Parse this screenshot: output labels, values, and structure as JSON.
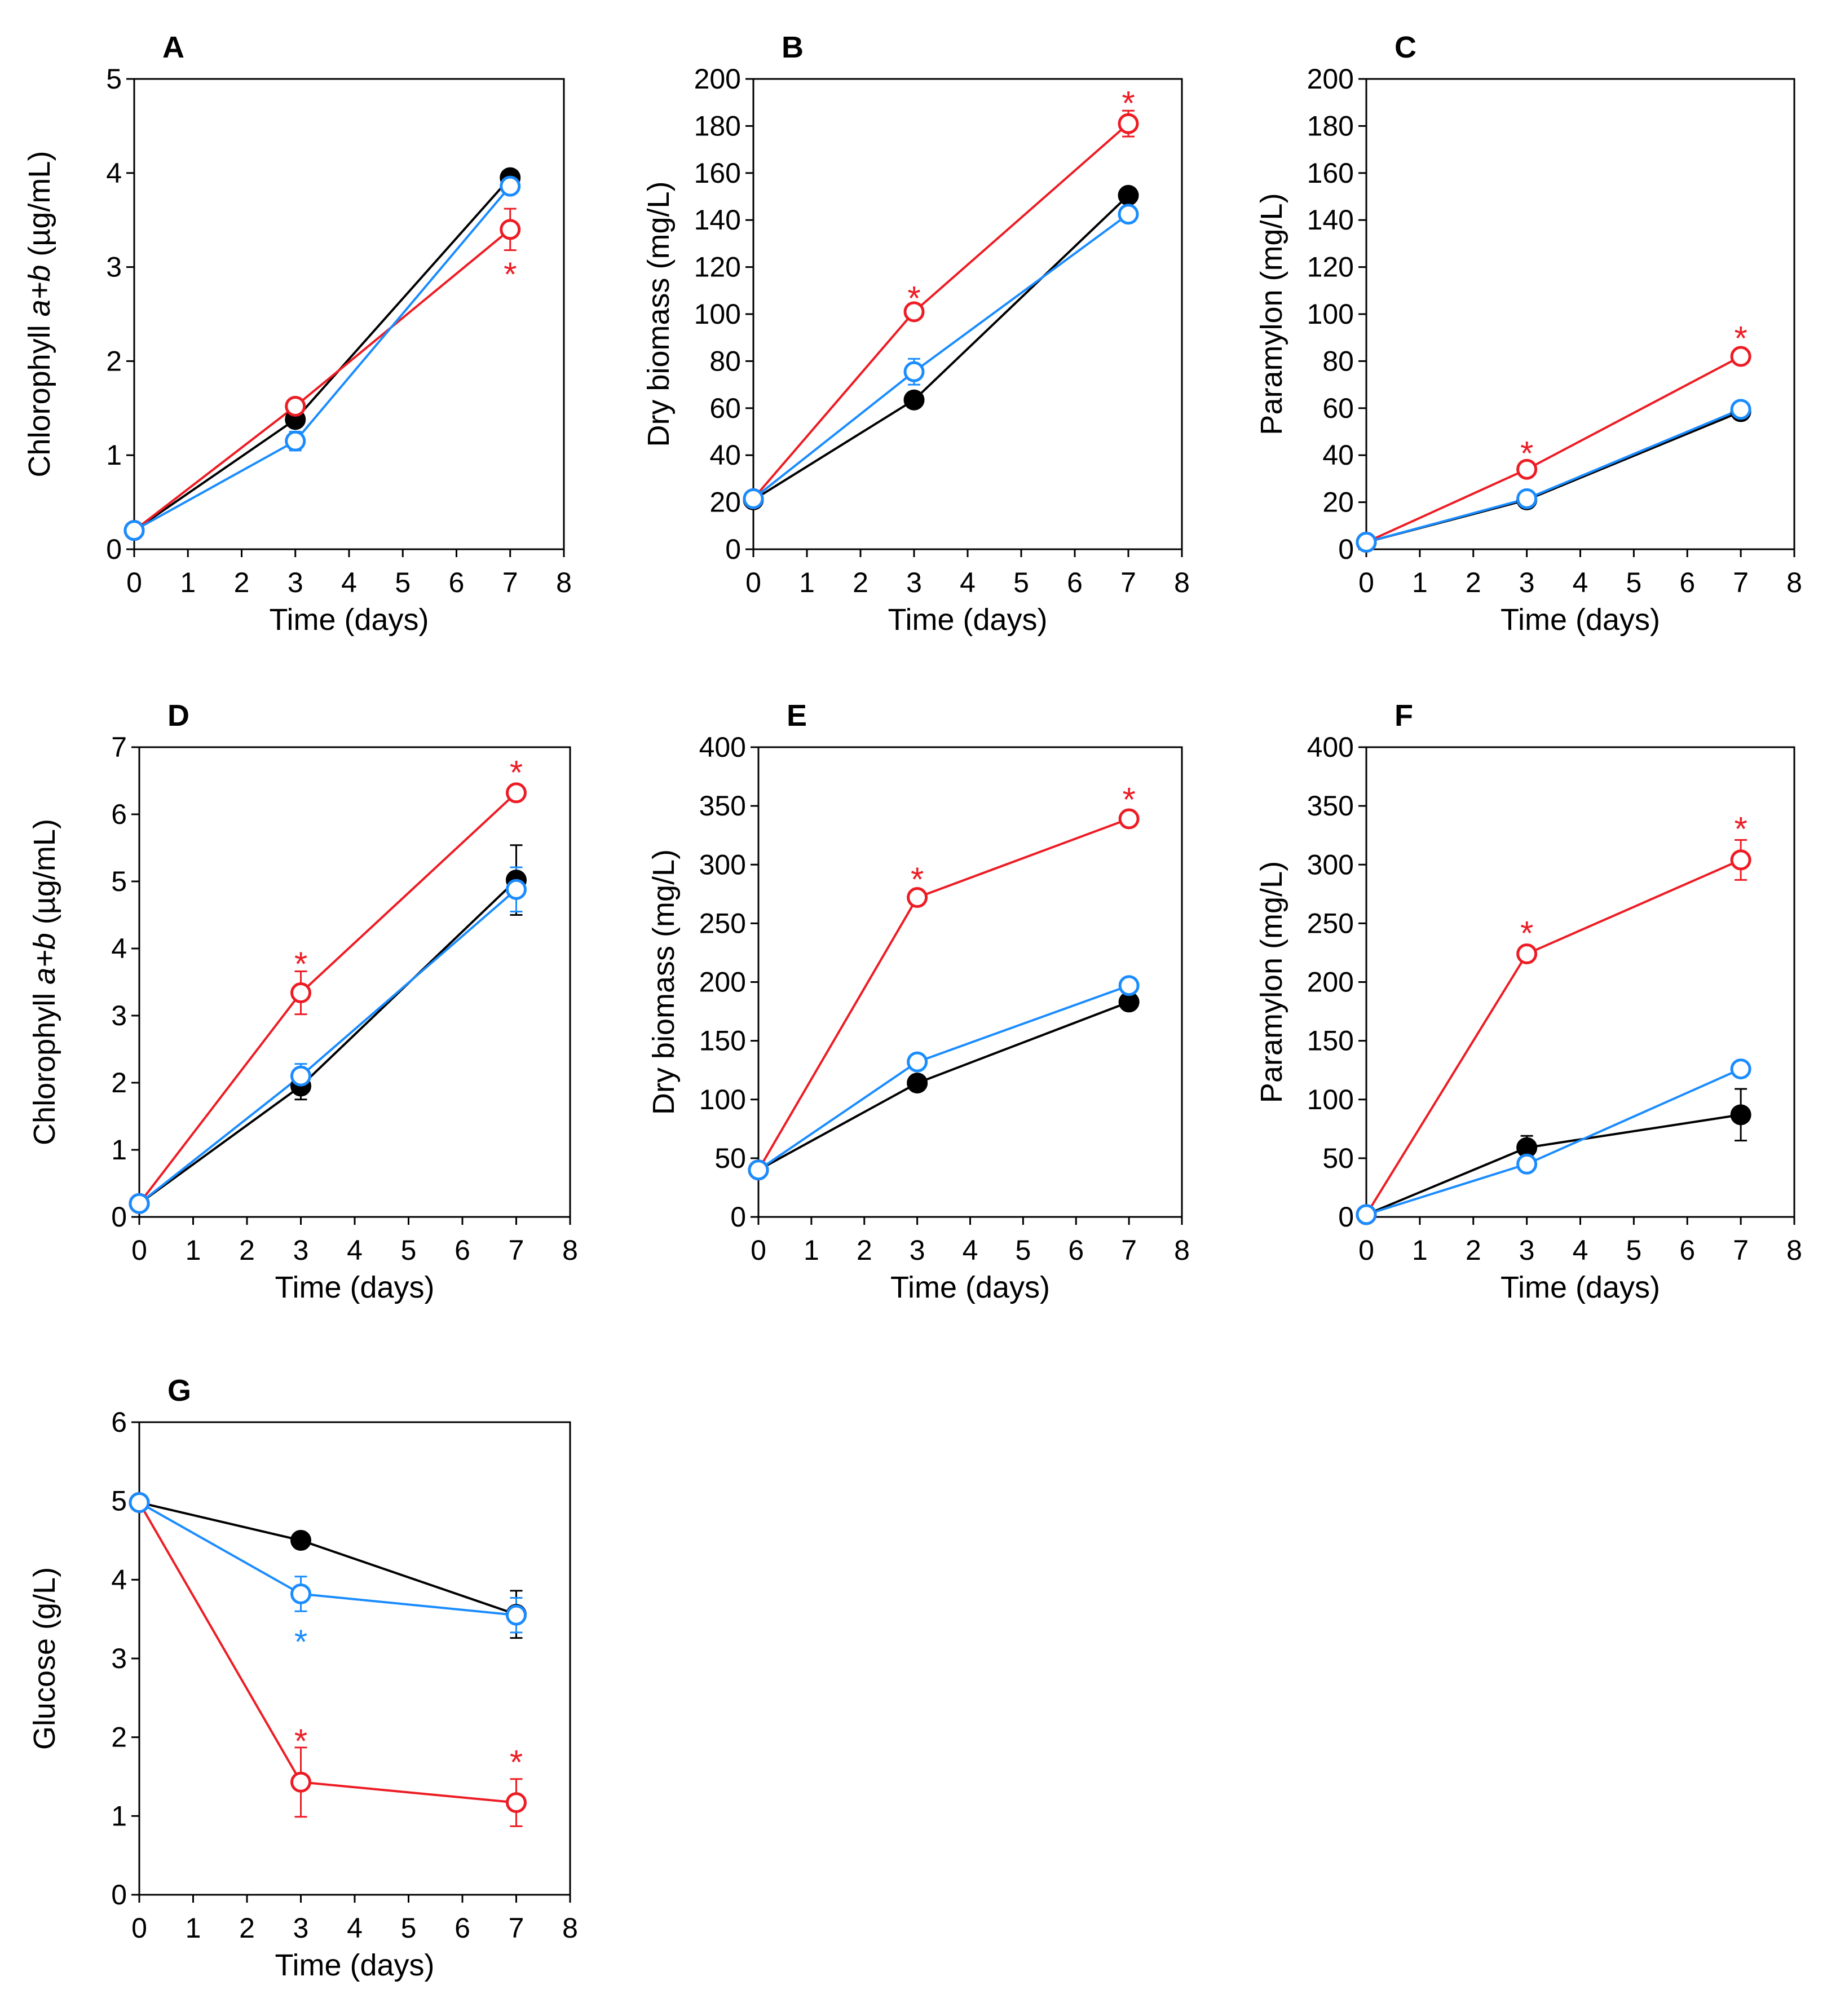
{
  "figure": {
    "series_styles": {
      "black": {
        "color": "#000000",
        "marker": "filled-circle"
      },
      "red": {
        "color": "#ed1c24",
        "marker": "open-circle"
      },
      "blue": {
        "color": "#1a8cff",
        "marker": "open-circle"
      }
    }
  },
  "chart_data": [
    {
      "panel": "A",
      "type": "line",
      "xlabel": "Time (days)",
      "ylabel_parts": [
        {
          "t": "Chlorophyll "
        },
        {
          "t": "a+b",
          "italic": true
        },
        {
          "t": " (µg/mL)"
        }
      ],
      "xlim": [
        0,
        8
      ],
      "xticks": [
        0,
        1,
        2,
        3,
        4,
        5,
        6,
        7,
        8
      ],
      "ylim": [
        0,
        5
      ],
      "yticks": [
        0,
        1,
        2,
        3,
        4,
        5
      ],
      "x": [
        0,
        3,
        7
      ],
      "series": [
        {
          "name": "black",
          "values": [
            0.2,
            1.38,
            3.95
          ],
          "errors": [
            0,
            0.05,
            0.05
          ]
        },
        {
          "name": "red",
          "values": [
            0.2,
            1.52,
            3.4
          ],
          "errors": [
            0,
            0.04,
            0.22
          ]
        },
        {
          "name": "blue",
          "values": [
            0.2,
            1.15,
            3.86
          ],
          "errors": [
            0,
            0.1,
            0.05
          ]
        }
      ],
      "annotations": [
        {
          "text": "*",
          "x": 7,
          "y": 2.98,
          "color": "red"
        }
      ]
    },
    {
      "panel": "B",
      "type": "line",
      "xlabel": "Time (days)",
      "ylabel_parts": [
        {
          "t": "Dry biomass (mg/L)"
        }
      ],
      "xlim": [
        0,
        8
      ],
      "xticks": [
        0,
        1,
        2,
        3,
        4,
        5,
        6,
        7,
        8
      ],
      "ylim": [
        0,
        200
      ],
      "yticks": [
        0,
        20,
        40,
        60,
        80,
        100,
        120,
        140,
        160,
        180,
        200
      ],
      "x": [
        0,
        3,
        7
      ],
      "series": [
        {
          "name": "black",
          "values": [
            21,
            63.5,
            150.5
          ],
          "errors": [
            0,
            2,
            2
          ]
        },
        {
          "name": "red",
          "values": [
            21.5,
            101,
            181
          ],
          "errors": [
            0,
            2,
            5.5
          ]
        },
        {
          "name": "blue",
          "values": [
            21.5,
            75.5,
            142.5
          ],
          "errors": [
            0,
            5.5,
            2.5
          ]
        }
      ],
      "annotations": [
        {
          "text": "*",
          "x": 3,
          "y": 109,
          "color": "red"
        },
        {
          "text": "*",
          "x": 7,
          "y": 192,
          "color": "red"
        }
      ]
    },
    {
      "panel": "C",
      "type": "line",
      "xlabel": "Time (days)",
      "ylabel_parts": [
        {
          "t": "Paramylon (mg/L)"
        }
      ],
      "xlim": [
        0,
        8
      ],
      "xticks": [
        0,
        1,
        2,
        3,
        4,
        5,
        6,
        7,
        8
      ],
      "ylim": [
        0,
        200
      ],
      "yticks": [
        0,
        20,
        40,
        60,
        80,
        100,
        120,
        140,
        160,
        180,
        200
      ],
      "x": [
        0,
        3,
        7
      ],
      "series": [
        {
          "name": "black",
          "values": [
            3,
            21,
            58.5
          ],
          "errors": [
            0,
            1,
            1.5
          ]
        },
        {
          "name": "red",
          "values": [
            3,
            34,
            82
          ],
          "errors": [
            0,
            1.5,
            2
          ]
        },
        {
          "name": "blue",
          "values": [
            3,
            21.5,
            59.5
          ],
          "errors": [
            0,
            1.5,
            2
          ]
        }
      ],
      "annotations": [
        {
          "text": "*",
          "x": 3,
          "y": 43,
          "color": "red"
        },
        {
          "text": "*",
          "x": 7,
          "y": 92,
          "color": "red"
        }
      ]
    },
    {
      "panel": "D",
      "type": "line",
      "xlabel": "Time (days)",
      "ylabel_parts": [
        {
          "t": "Chlorophyll "
        },
        {
          "t": "a+b",
          "italic": true
        },
        {
          "t": " (µg/mL)"
        }
      ],
      "xlim": [
        0,
        8
      ],
      "xticks": [
        0,
        1,
        2,
        3,
        4,
        5,
        6,
        7,
        8
      ],
      "ylim": [
        0,
        7
      ],
      "yticks": [
        0,
        1,
        2,
        3,
        4,
        5,
        6,
        7
      ],
      "x": [
        0,
        3,
        7
      ],
      "series": [
        {
          "name": "black",
          "values": [
            0.2,
            1.95,
            5.02
          ],
          "errors": [
            0,
            0.2,
            0.52
          ]
        },
        {
          "name": "red",
          "values": [
            0.2,
            3.34,
            6.32
          ],
          "errors": [
            0,
            0.32,
            0.05
          ]
        },
        {
          "name": "blue",
          "values": [
            0.2,
            2.1,
            4.88
          ],
          "errors": [
            0,
            0.18,
            0.33
          ]
        }
      ],
      "annotations": [
        {
          "text": "*",
          "x": 3,
          "y": 3.85,
          "color": "red"
        },
        {
          "text": "*",
          "x": 7,
          "y": 6.7,
          "color": "red"
        }
      ]
    },
    {
      "panel": "E",
      "type": "line",
      "xlabel": "Time (days)",
      "ylabel_parts": [
        {
          "t": "Dry biomass (mg/L)"
        }
      ],
      "xlim": [
        0,
        8
      ],
      "xticks": [
        0,
        1,
        2,
        3,
        4,
        5,
        6,
        7,
        8
      ],
      "ylim": [
        0,
        400
      ],
      "yticks": [
        0,
        50,
        100,
        150,
        200,
        250,
        300,
        350,
        400
      ],
      "x": [
        0,
        3,
        7
      ],
      "series": [
        {
          "name": "black",
          "values": [
            40,
            114,
            183
          ],
          "errors": [
            0,
            3,
            3
          ]
        },
        {
          "name": "red",
          "values": [
            40,
            272,
            339
          ],
          "errors": [
            0,
            3,
            3
          ]
        },
        {
          "name": "blue",
          "values": [
            40,
            132,
            197
          ],
          "errors": [
            0,
            3,
            3
          ]
        }
      ],
      "annotations": [
        {
          "text": "*",
          "x": 3,
          "y": 292,
          "color": "red"
        },
        {
          "text": "*",
          "x": 7,
          "y": 360,
          "color": "red"
        }
      ]
    },
    {
      "panel": "F",
      "type": "line",
      "xlabel": "Time (days)",
      "ylabel_parts": [
        {
          "t": "Paramylon (mg/L)"
        }
      ],
      "xlim": [
        0,
        8
      ],
      "xticks": [
        0,
        1,
        2,
        3,
        4,
        5,
        6,
        7,
        8
      ],
      "ylim": [
        0,
        400
      ],
      "yticks": [
        0,
        50,
        100,
        150,
        200,
        250,
        300,
        350,
        400
      ],
      "x": [
        0,
        3,
        7
      ],
      "series": [
        {
          "name": "black",
          "values": [
            2,
            59,
            87
          ],
          "errors": [
            0,
            10,
            22
          ]
        },
        {
          "name": "red",
          "values": [
            2,
            224,
            304
          ],
          "errors": [
            0,
            3,
            17
          ]
        },
        {
          "name": "blue",
          "values": [
            2,
            45,
            126
          ],
          "errors": [
            0,
            3,
            3
          ]
        }
      ],
      "annotations": [
        {
          "text": "*",
          "x": 3,
          "y": 246,
          "color": "red"
        },
        {
          "text": "*",
          "x": 7,
          "y": 335,
          "color": "red"
        }
      ]
    },
    {
      "panel": "G",
      "type": "line",
      "xlabel": "Time (days)",
      "ylabel_parts": [
        {
          "t": "Glucose (g/L)"
        }
      ],
      "xlim": [
        0,
        8
      ],
      "xticks": [
        0,
        1,
        2,
        3,
        4,
        5,
        6,
        7,
        8
      ],
      "ylim": [
        0,
        6
      ],
      "yticks": [
        0,
        1,
        2,
        3,
        4,
        5,
        6
      ],
      "x": [
        0,
        3,
        7
      ],
      "series": [
        {
          "name": "black",
          "values": [
            4.98,
            4.5,
            3.56
          ],
          "errors": [
            0,
            0.04,
            0.3
          ]
        },
        {
          "name": "red",
          "values": [
            4.98,
            1.43,
            1.17
          ],
          "errors": [
            0,
            0.44,
            0.3
          ]
        },
        {
          "name": "blue",
          "values": [
            4.98,
            3.82,
            3.55
          ],
          "errors": [
            0,
            0.22,
            0.22
          ]
        }
      ],
      "annotations": [
        {
          "text": "*",
          "x": 3,
          "y": 3.28,
          "color": "blue"
        },
        {
          "text": "*",
          "x": 3,
          "y": 2.02,
          "color": "red"
        },
        {
          "text": "*",
          "x": 7,
          "y": 1.75,
          "color": "red"
        }
      ]
    }
  ]
}
